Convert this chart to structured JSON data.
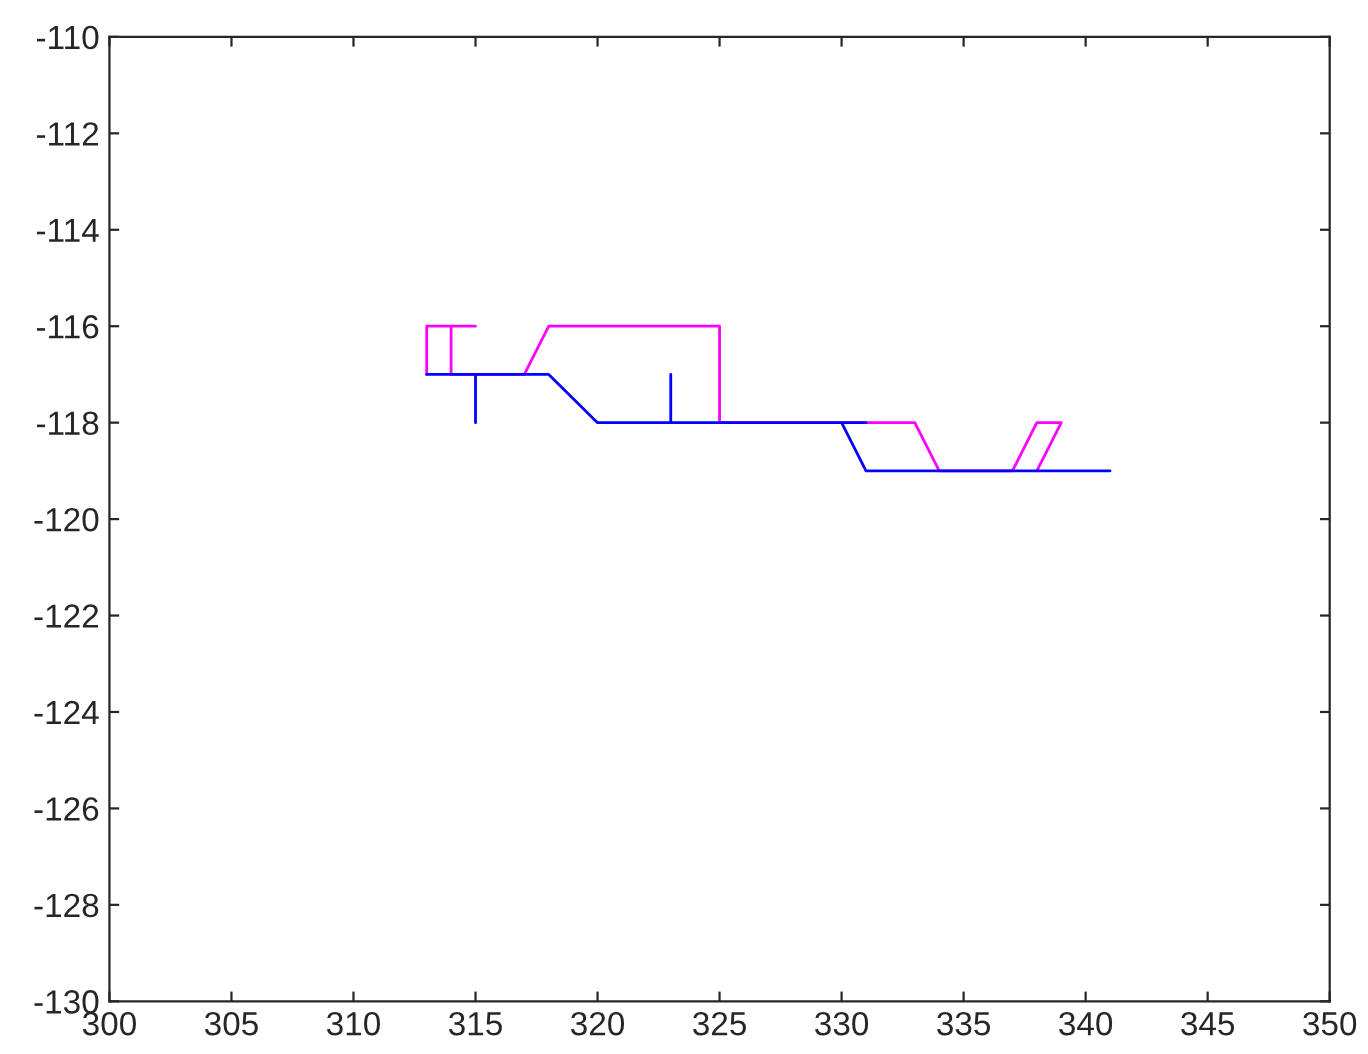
{
  "chart_data": {
    "type": "line",
    "xlim": [
      300,
      350
    ],
    "ylim": [
      -130,
      -110
    ],
    "xticks": [
      300,
      305,
      310,
      315,
      320,
      325,
      330,
      335,
      340,
      345,
      350
    ],
    "yticks": [
      -130,
      -128,
      -126,
      -124,
      -122,
      -120,
      -118,
      -116,
      -114,
      -112,
      -110
    ],
    "grid": false,
    "marker": "none",
    "line_style": "solid",
    "series": [
      {
        "color": "#ff00ff",
        "x": [
          313,
          313,
          315,
          314,
          314,
          317,
          318,
          325,
          325,
          333,
          334,
          337,
          338,
          339,
          338
        ],
        "values": [
          -117,
          -116,
          -116,
          -116,
          -117,
          -117,
          -116,
          -116,
          -118,
          -118,
          -119,
          -119,
          -118,
          -118,
          -119
        ]
      },
      {
        "color": "#0000ff",
        "x": [
          313,
          315,
          315,
          315,
          318,
          320,
          323,
          323,
          323,
          331,
          330,
          331,
          341
        ],
        "values": [
          -117,
          -117,
          -118,
          -117,
          -117,
          -118,
          -118,
          -117,
          -118,
          -118,
          -118,
          -119,
          -119
        ]
      }
    ]
  }
}
